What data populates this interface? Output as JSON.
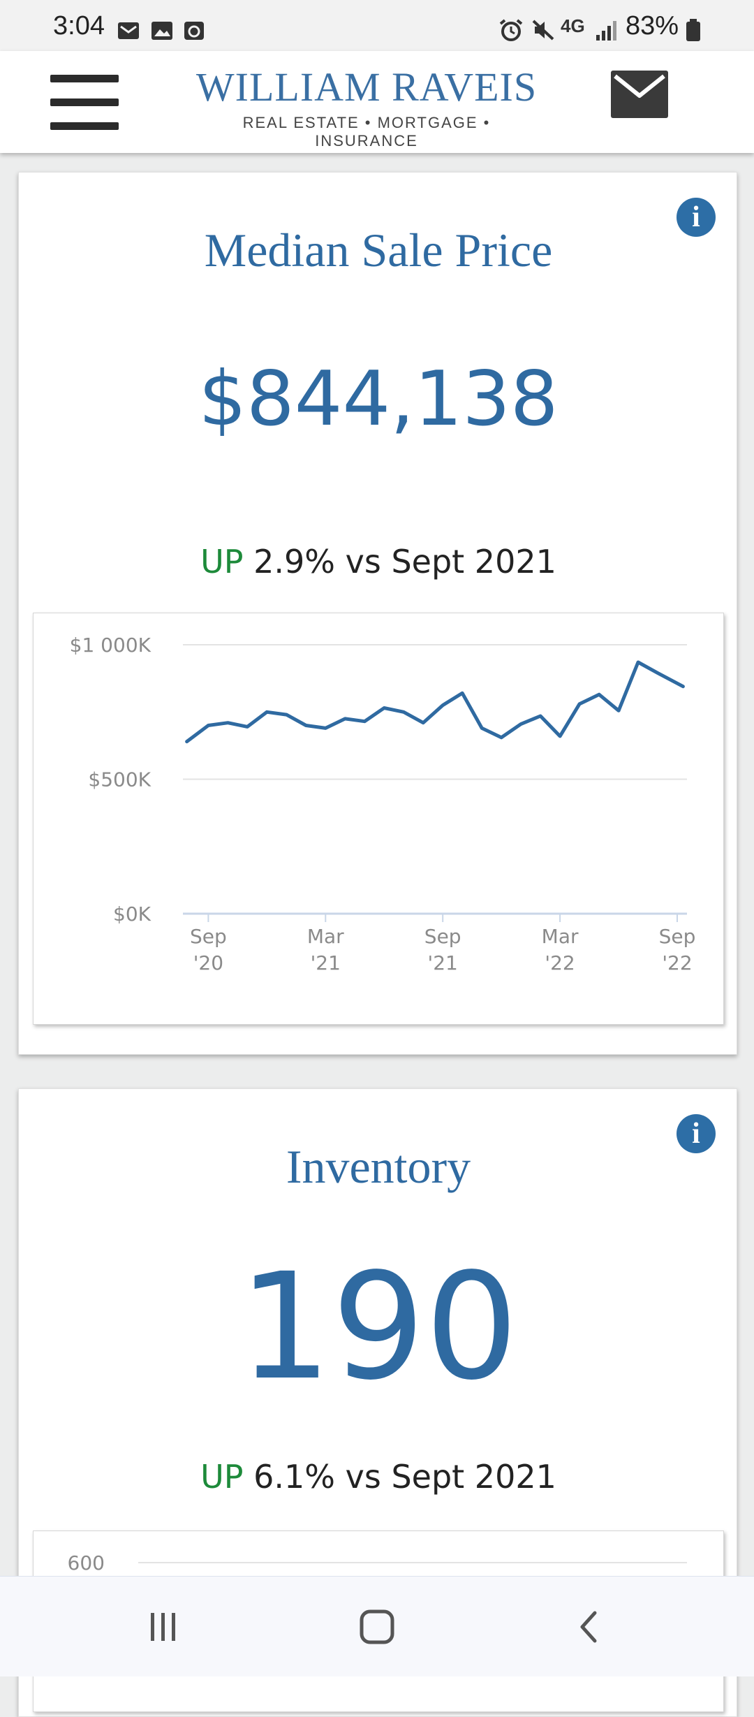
{
  "status_bar": {
    "time": "3:04",
    "network": "4G",
    "battery": "83%"
  },
  "header": {
    "brand_name": "WILLIAM RAVEIS",
    "brand_tagline": "REAL ESTATE • MORTGAGE • INSURANCE"
  },
  "cards": [
    {
      "title": "Median Sale Price",
      "value": "$844,138",
      "change_direction": "UP",
      "change_text": "2.9% vs Sept 2021"
    },
    {
      "title": "Inventory",
      "value": "190",
      "change_direction": "UP",
      "change_text": "6.1% vs Sept 2021"
    }
  ],
  "icons": [
    "menu-icon",
    "mail-icon",
    "info-icon",
    "recents-icon",
    "home-icon",
    "back-icon"
  ],
  "colors": {
    "accent": "#2f6aa1",
    "up": "#1d8a3a"
  },
  "chart_data": [
    {
      "type": "line",
      "title": "",
      "ylim": [
        0,
        1000
      ],
      "y_ticks": [
        {
          "value": 1000,
          "label": "$1 000K"
        },
        {
          "value": 500,
          "label": "$500K"
        },
        {
          "value": 0,
          "label": "$0K"
        }
      ],
      "x_ticks": [
        {
          "x": 1,
          "label": "Sep '20"
        },
        {
          "x": 7,
          "label": "Mar '21"
        },
        {
          "x": 13,
          "label": "Sep '21"
        },
        {
          "x": 19,
          "label": "Mar '22"
        },
        {
          "x": 25,
          "label": "Sep '22"
        }
      ],
      "xlim": [
        -0.3,
        25.5
      ],
      "grid": true,
      "series": [
        {
          "color": "#2f6aa1",
          "x": [
            -0.1,
            1,
            2,
            3,
            4,
            5,
            6,
            7,
            8,
            9,
            10,
            11,
            12,
            13,
            14,
            15,
            16,
            17,
            18,
            19,
            20,
            21,
            22,
            23,
            24,
            25.3
          ],
          "values": [
            640,
            700,
            710,
            695,
            750,
            740,
            700,
            690,
            725,
            715,
            765,
            750,
            710,
            775,
            820,
            690,
            655,
            705,
            735,
            660,
            780,
            815,
            755,
            935,
            895,
            845
          ]
        }
      ]
    },
    {
      "type": "line",
      "title": "",
      "y_ticks": [
        {
          "value": 600,
          "label": "600"
        }
      ],
      "grid": true,
      "series": []
    }
  ]
}
